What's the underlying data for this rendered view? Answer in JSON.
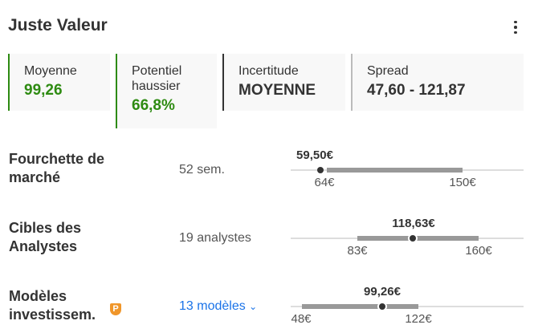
{
  "header": {
    "title": "Juste Valeur",
    "menu_icon": "kebab-menu-icon"
  },
  "cards": [
    {
      "label": "Moyenne",
      "value": "99,26",
      "color": "#2e8b12",
      "border": "#2e8b12"
    },
    {
      "label": "Potentiel haussier",
      "value": "66,8%",
      "color": "#2e8b12",
      "border": "#2e8b12"
    },
    {
      "label": "Incertitude",
      "value": "MOYENNE",
      "color": "#333333",
      "border": "#333333"
    },
    {
      "label": "Spread",
      "value": "47,60 - 121,87",
      "color": "#333333",
      "border": "#bbbbbb"
    }
  ],
  "rows": [
    {
      "label": "Fourchette de marché",
      "sub": "52 sem.",
      "current": "59,50€",
      "low": "64€",
      "high": "150€"
    },
    {
      "label": "Cibles des Analystes",
      "sub": "19 analystes",
      "current": "118,63€",
      "low": "83€",
      "high": "160€"
    },
    {
      "label": "Modèles investissem.",
      "sub": "13 modèles",
      "current": "99,26€",
      "low": "48€",
      "high": "122€",
      "badge_icon": "pro-shield-icon",
      "link_color": "#1a73e8"
    }
  ]
}
